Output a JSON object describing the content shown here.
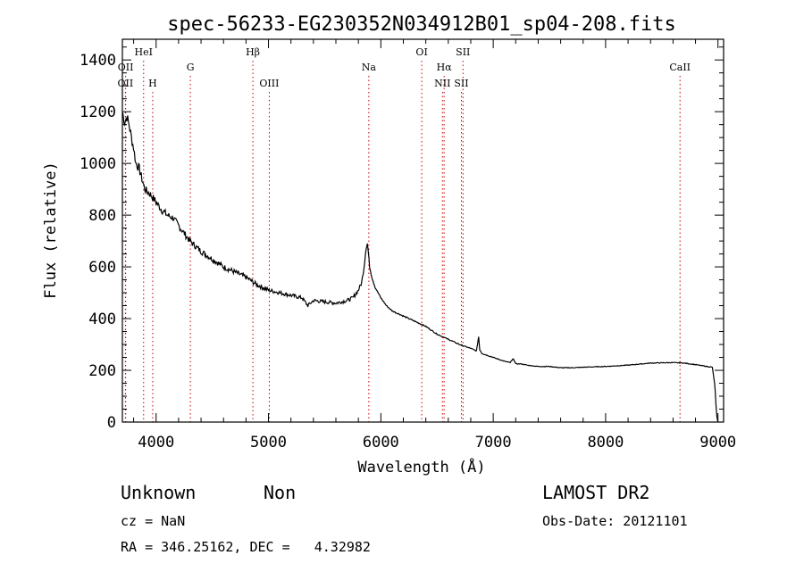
{
  "chart_data": {
    "type": "line",
    "title": "spec-56233-EG230352N034912B01_sp04-208.fits",
    "xlabel": "Wavelength (Å)",
    "ylabel": "Flux (relative)",
    "xlim": [
      3700,
      9050
    ],
    "ylim": [
      0,
      1480
    ],
    "x_ticks": [
      4000,
      5000,
      6000,
      7000,
      8000,
      9000
    ],
    "y_ticks": [
      0,
      200,
      400,
      600,
      800,
      1000,
      1200,
      1400
    ],
    "grid": false,
    "series": [
      {
        "line_color": "#000000",
        "x": [
          3700,
          3720,
          3740,
          3760,
          3780,
          3800,
          3820,
          3850,
          3880,
          3900,
          3950,
          4000,
          4050,
          4100,
          4150,
          4200,
          4300,
          4400,
          4500,
          4600,
          4700,
          4800,
          4900,
          5000,
          5100,
          5200,
          5300,
          5350,
          5400,
          5500,
          5600,
          5700,
          5750,
          5800,
          5830,
          5850,
          5870,
          5880,
          5890,
          5900,
          5920,
          5950,
          6000,
          6050,
          6100,
          6200,
          6300,
          6400,
          6500,
          6600,
          6700,
          6800,
          6850,
          6860,
          6870,
          6880,
          6900,
          7000,
          7100,
          7150,
          7180,
          7200,
          7250,
          7300,
          7400,
          7500,
          7600,
          7700,
          7800,
          8000,
          8200,
          8400,
          8600,
          8700,
          8800,
          8900,
          8950,
          8960,
          8970,
          8975,
          8980,
          8990,
          9000
        ],
        "y": [
          1200,
          1160,
          1180,
          1150,
          1100,
          1060,
          1000,
          980,
          930,
          900,
          880,
          850,
          820,
          800,
          790,
          760,
          700,
          660,
          630,
          600,
          580,
          560,
          530,
          510,
          500,
          490,
          480,
          450,
          470,
          465,
          460,
          470,
          480,
          510,
          540,
          600,
          680,
          690,
          650,
          600,
          560,
          520,
          480,
          450,
          430,
          410,
          390,
          370,
          340,
          320,
          300,
          285,
          275,
          300,
          330,
          280,
          265,
          250,
          235,
          230,
          245,
          225,
          225,
          220,
          215,
          215,
          210,
          210,
          212,
          215,
          220,
          228,
          230,
          228,
          222,
          215,
          212,
          180,
          150,
          120,
          80,
          20,
          0
        ]
      }
    ],
    "emission_lines": [
      {
        "label": "OII",
        "wavelength": 3727,
        "row": "lower"
      },
      {
        "label": "OII",
        "wavelength": 3729,
        "row": "upper"
      },
      {
        "label": "HeI",
        "wavelength": 3889,
        "row": "top"
      },
      {
        "label": "H",
        "wavelength": 3970,
        "row": "lower"
      },
      {
        "label": "G",
        "wavelength": 4305,
        "row": "upper"
      },
      {
        "label": "Hβ",
        "wavelength": 4861,
        "row": "top"
      },
      {
        "label": "OIII",
        "wavelength": 5007,
        "row": "lower"
      },
      {
        "label": "Na",
        "wavelength": 5893,
        "row": "upper"
      },
      {
        "label": "OI",
        "wavelength": 6364,
        "row": "top"
      },
      {
        "label": "Hα",
        "wavelength": 6563,
        "row": "upper"
      },
      {
        "label": "NII",
        "wavelength": 6548,
        "row": "lower"
      },
      {
        "label": "SII",
        "wavelength": 6731,
        "row": "top"
      },
      {
        "label": "SII",
        "wavelength": 6717,
        "row": "lower"
      },
      {
        "label": "CaII",
        "wavelength": 8662,
        "row": "upper"
      }
    ],
    "line_color": "#cc0000"
  },
  "info": {
    "classification": "Unknown",
    "subclass": "Non",
    "survey": "LAMOST DR2",
    "redshift": "cz = NaN",
    "obs_date": "Obs-Date: 20121101",
    "coords": "RA = 346.25162, DEC =   4.32982"
  }
}
